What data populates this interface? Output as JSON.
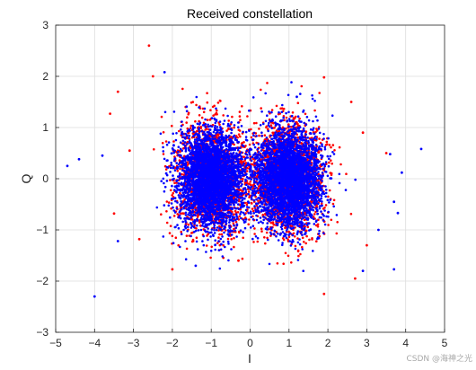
{
  "chart_data": {
    "type": "scatter",
    "title": "Received constellation",
    "xlabel": "I",
    "ylabel": "Q",
    "xlim": [
      -5,
      5
    ],
    "ylim": [
      -3,
      3
    ],
    "xticks": [
      -5,
      -4,
      -3,
      -2,
      -1,
      0,
      1,
      2,
      3,
      4,
      5
    ],
    "yticks": [
      -3,
      -2,
      -1,
      0,
      1,
      2,
      3
    ],
    "grid": true,
    "clusters": [
      {
        "center": [
          -1,
          0
        ],
        "spread": [
          0.42,
          0.48
        ]
      },
      {
        "center": [
          1,
          0
        ],
        "spread": [
          0.42,
          0.48
        ]
      }
    ],
    "series": [
      {
        "color": "#ff0000",
        "outliers": [
          [
            -2.6,
            2.6
          ],
          [
            -3.4,
            1.7
          ],
          [
            -3.6,
            1.27
          ],
          [
            -2.5,
            2.0
          ],
          [
            -3.5,
            -0.68
          ],
          [
            -2.85,
            -1.18
          ],
          [
            -2.0,
            -1.77
          ],
          [
            -0.3,
            -1.6
          ],
          [
            1.9,
            1.98
          ],
          [
            2.6,
            1.5
          ],
          [
            3.0,
            -1.3
          ],
          [
            1.9,
            -2.25
          ],
          [
            2.7,
            -1.95
          ],
          [
            3.5,
            0.5
          ],
          [
            2.9,
            0.9
          ],
          [
            -3.1,
            0.55
          ]
        ]
      },
      {
        "color": "#0000ff",
        "outliers": [
          [
            -4.7,
            0.25
          ],
          [
            -4.4,
            0.38
          ],
          [
            -4.0,
            -2.3
          ],
          [
            -3.4,
            -1.22
          ],
          [
            -2.2,
            2.08
          ],
          [
            -3.8,
            0.45
          ],
          [
            3.7,
            -1.77
          ],
          [
            4.4,
            0.58
          ],
          [
            3.9,
            0.12
          ],
          [
            3.7,
            -0.45
          ],
          [
            3.6,
            0.48
          ],
          [
            3.8,
            -0.67
          ],
          [
            2.9,
            -1.8
          ],
          [
            3.3,
            -1.0
          ],
          [
            -1.4,
            -1.7
          ],
          [
            1.2,
            1.6
          ]
        ]
      }
    ]
  },
  "watermark": "CSDN @海神之光"
}
